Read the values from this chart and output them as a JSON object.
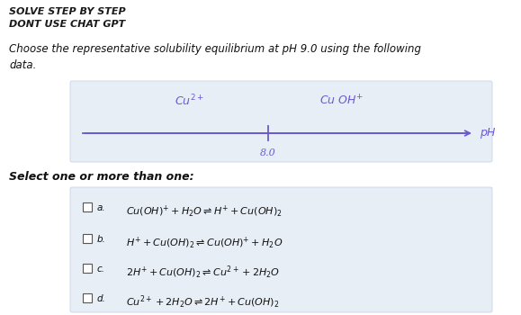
{
  "header_line1": "SOLVE STEP BY STEP",
  "header_line2": "DONT USE CHAT GPT",
  "question": "Choose the representative solubility equilibrium at pH 9.0 using the following\ndata.",
  "select_label": "Select one or more than one:",
  "diagram_label1": "$Cu^{2+}$",
  "diagram_label2": "$Cu\\ OH^{+}$",
  "diagram_tick": "8.0",
  "diagram_ph": "$pH$",
  "opt_letters": [
    "a.",
    "b.",
    "c.",
    "d."
  ],
  "opt_texts": [
    "$Cu(OH)^{+} + H_2O \\rightleftharpoons H^{+} + Cu(OH)_{2}$",
    "$H^{+} + Cu(OH)_{2} \\rightleftharpoons Cu(OH)^{+} + H_2O$",
    "$2H^{+} + Cu(OH)_{2} \\rightleftharpoons Cu^{2+} + 2H_2O$",
    "$Cu^{2+} + 2H_2O \\rightleftharpoons 2H^{+} + Cu(OH)_{2}$"
  ],
  "bg_color": "#ffffff",
  "diagram_bg": "#e8eef6",
  "options_bg": "#e8eef6",
  "header_color": "#1a1a1a",
  "question_color": "#111111",
  "option_color": "#111111",
  "line_color": "#6a5acd",
  "label_color": "#6a5acd",
  "diag_border": "#c0cce0",
  "opts_border": "#c0cce0"
}
